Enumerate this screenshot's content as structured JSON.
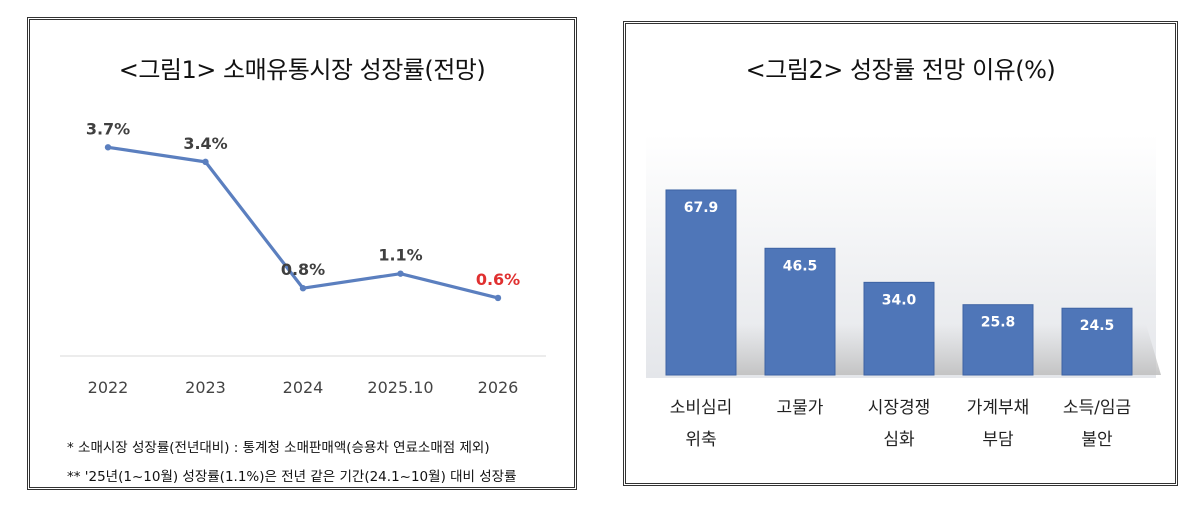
{
  "chart_data": [
    {
      "type": "line",
      "title": "<그림1> 소매유통시장 성장률(전망)",
      "categories": [
        "2022",
        "2023",
        "2024",
        "2025.10",
        "2026"
      ],
      "values": [
        3.7,
        3.4,
        0.8,
        1.1,
        0.6
      ],
      "data_labels": [
        "3.7%",
        "3.4%",
        "0.8%",
        "1.1%",
        "0.6%"
      ],
      "highlight_index": 4,
      "ylim": [
        -1.5,
        4.2
      ],
      "grid": false,
      "colors": {
        "line": "#5b7fbf",
        "label": "#404040",
        "highlight": "#e03030"
      }
    },
    {
      "type": "bar",
      "title": "<그림2> 성장률 전망 이유(%)",
      "categories": [
        "소비심리\n위축",
        "고물가",
        "시장경쟁\n심화",
        "가계부채\n부담",
        "소득/임금\n불안"
      ],
      "values": [
        67.9,
        46.5,
        34.0,
        25.8,
        24.5
      ],
      "data_labels": [
        "67.9",
        "46.5",
        "34.0",
        "25.8",
        "24.5"
      ],
      "ylim": [
        0,
        80
      ],
      "grid": false,
      "colors": {
        "bar": "#4f76b8",
        "bar_dark": "#3e63a3",
        "label": "#ffffff"
      }
    }
  ],
  "notes": {
    "note1": "* 소매시장 성장률(전년대비) : 통계청 소매판매액(승용차 연료소매점 제외)",
    "note2": "** '25년(1~10월) 성장률(1.1%)은 전년 같은 기간(24.1~10월) 대비 성장률"
  }
}
